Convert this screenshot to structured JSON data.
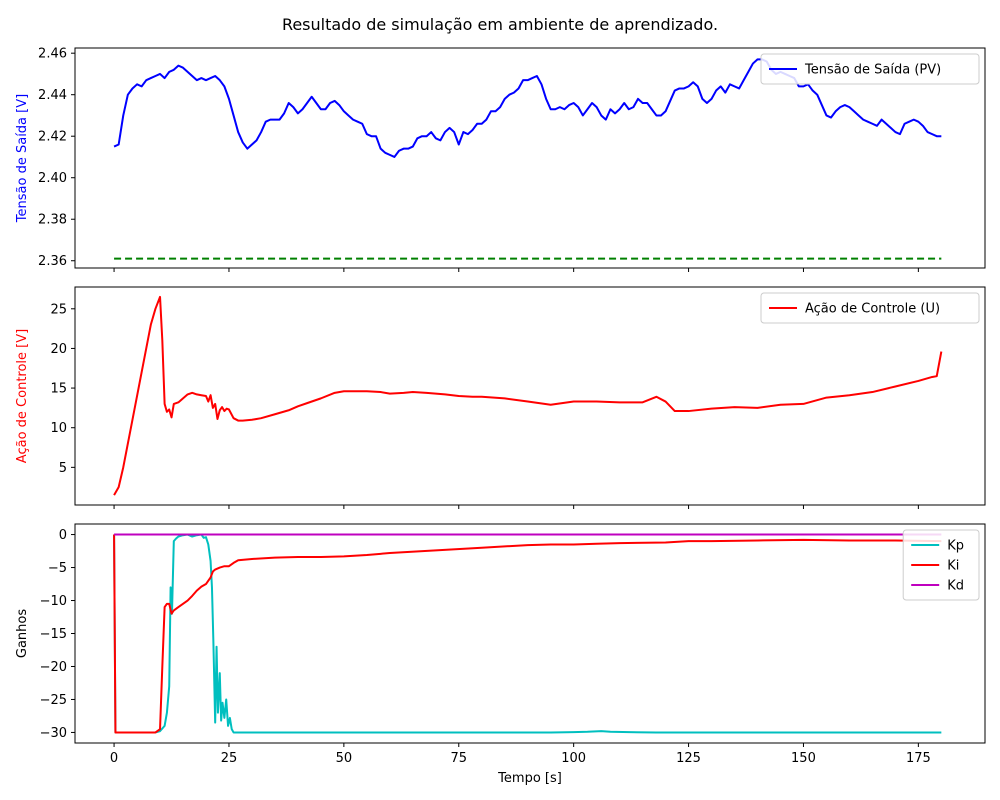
{
  "figure_title": "Resultado de simulação em ambiente de aprendizado.",
  "x_axis": {
    "label": "Tempo [s]",
    "ticks": [
      0,
      25,
      50,
      75,
      100,
      125,
      150,
      175
    ],
    "range": [
      -8.5,
      189.5
    ]
  },
  "chart_data": [
    {
      "type": "line",
      "ylabel": "Tensão de Saída [V]",
      "ylabel_color": "#0000ff",
      "xlim": [
        -8.5,
        189.5
      ],
      "ylim": [
        2.3565,
        2.4625
      ],
      "yticks": [
        2.36,
        2.38,
        2.4,
        2.42,
        2.44,
        2.46
      ],
      "yticks_labels": [
        "2.36",
        "2.38",
        "2.40",
        "2.42",
        "2.44",
        "2.46"
      ],
      "grid": false,
      "legend": {
        "placement": "top-right",
        "entries": [
          "Tensão de Saída (PV)"
        ]
      },
      "series": [
        {
          "name": "Tensão de Saída (PV)",
          "color": "#0000ff",
          "style": "solid",
          "x": [
            0,
            1,
            2,
            3,
            4,
            5,
            6,
            7,
            8,
            9,
            10,
            11,
            12,
            13,
            14,
            15,
            16,
            17,
            18,
            19,
            20,
            21,
            22,
            23,
            24,
            25,
            26,
            27,
            28,
            29,
            30,
            31,
            32,
            33,
            34,
            35,
            36,
            37,
            38,
            39,
            40,
            41,
            42,
            43,
            44,
            45,
            46,
            47,
            48,
            49,
            50,
            51,
            52,
            53,
            54,
            55,
            56,
            57,
            58,
            59,
            60,
            61,
            62,
            63,
            64,
            65,
            66,
            67,
            68,
            69,
            70,
            71,
            72,
            73,
            74,
            75,
            76,
            77,
            78,
            79,
            80,
            81,
            82,
            83,
            84,
            85,
            86,
            87,
            88,
            89,
            90,
            91,
            92,
            93,
            94,
            95,
            96,
            97,
            98,
            99,
            100,
            101,
            102,
            103,
            104,
            105,
            106,
            107,
            108,
            109,
            110,
            111,
            112,
            113,
            114,
            115,
            116,
            117,
            118,
            119,
            120,
            121,
            122,
            123,
            124,
            125,
            126,
            127,
            128,
            129,
            130,
            131,
            132,
            133,
            134,
            135,
            136,
            137,
            138,
            139,
            140,
            141,
            142,
            143,
            144,
            145,
            146,
            147,
            148,
            149,
            150,
            151,
            152,
            153,
            154,
            155,
            156,
            157,
            158,
            159,
            160,
            161,
            162,
            163,
            164,
            165,
            166,
            167,
            168,
            169,
            170,
            171,
            172,
            173,
            174,
            175,
            176,
            177,
            178,
            179,
            180
          ],
          "y": [
            2.415,
            2.416,
            2.43,
            2.44,
            2.443,
            2.445,
            2.444,
            2.447,
            2.448,
            2.449,
            2.45,
            2.448,
            2.451,
            2.452,
            2.454,
            2.453,
            2.451,
            2.449,
            2.447,
            2.448,
            2.447,
            2.448,
            2.449,
            2.447,
            2.444,
            2.438,
            2.43,
            2.422,
            2.417,
            2.414,
            2.416,
            2.418,
            2.422,
            2.427,
            2.428,
            2.428,
            2.428,
            2.431,
            2.436,
            2.434,
            2.431,
            2.433,
            2.436,
            2.439,
            2.436,
            2.433,
            2.433,
            2.436,
            2.437,
            2.435,
            2.432,
            2.43,
            2.428,
            2.427,
            2.426,
            2.421,
            2.42,
            2.42,
            2.414,
            2.412,
            2.411,
            2.41,
            2.413,
            2.414,
            2.414,
            2.415,
            2.419,
            2.42,
            2.42,
            2.422,
            2.419,
            2.418,
            2.422,
            2.424,
            2.422,
            2.416,
            2.422,
            2.421,
            2.423,
            2.426,
            2.426,
            2.428,
            2.432,
            2.432,
            2.434,
            2.438,
            2.44,
            2.441,
            2.443,
            2.447,
            2.447,
            2.448,
            2.449,
            2.445,
            2.438,
            2.433,
            2.433,
            2.434,
            2.433,
            2.435,
            2.436,
            2.434,
            2.43,
            2.433,
            2.436,
            2.434,
            2.43,
            2.428,
            2.433,
            2.431,
            2.433,
            2.436,
            2.433,
            2.434,
            2.438,
            2.436,
            2.436,
            2.433,
            2.43,
            2.43,
            2.432,
            2.437,
            2.442,
            2.443,
            2.443,
            2.444,
            2.446,
            2.444,
            2.438,
            2.436,
            2.438,
            2.442,
            2.444,
            2.441,
            2.445,
            2.444,
            2.443,
            2.447,
            2.451,
            2.455,
            2.457,
            2.457,
            2.456,
            2.452,
            2.45,
            2.451,
            2.45,
            2.449,
            2.448,
            2.444,
            2.444,
            2.445,
            2.442,
            2.44,
            2.435,
            2.43,
            2.429,
            2.432,
            2.434,
            2.435,
            2.434,
            2.432,
            2.43,
            2.428,
            2.427,
            2.426,
            2.425,
            2.428,
            2.426,
            2.424,
            2.422,
            2.421,
            2.426,
            2.427,
            2.428,
            2.427,
            2.425,
            2.422,
            2.421,
            2.42,
            2.42
          ]
        },
        {
          "name": "",
          "color": "#008000",
          "style": "dashed",
          "x": [
            0,
            180
          ],
          "y": [
            2.361,
            2.361
          ]
        }
      ]
    },
    {
      "type": "line",
      "ylabel": "Ação de Controle [V]",
      "ylabel_color": "#ff0000",
      "xlim": [
        -8.5,
        189.5
      ],
      "ylim": [
        0.25,
        27.75
      ],
      "yticks": [
        5,
        10,
        15,
        20,
        25
      ],
      "yticks_labels": [
        "5",
        "10",
        "15",
        "20",
        "25"
      ],
      "grid": false,
      "legend": {
        "placement": "top-right",
        "entries": [
          "Ação de Controle (U)"
        ]
      },
      "series": [
        {
          "name": "Ação de Controle (U)",
          "color": "#ff0000",
          "style": "solid",
          "x": [
            0,
            1,
            2,
            4,
            6,
            8,
            9,
            10,
            10.5,
            11,
            11.5,
            12,
            12.5,
            13,
            14,
            15,
            16,
            17,
            18,
            19,
            20,
            20.5,
            21,
            21.5,
            22,
            22.5,
            23,
            23.5,
            24,
            24.5,
            25,
            26,
            27,
            28,
            30,
            32,
            35,
            38,
            40,
            42,
            45,
            48,
            50,
            52,
            55,
            58,
            60,
            63,
            65,
            68,
            70,
            72,
            75,
            78,
            80,
            85,
            90,
            95,
            100,
            105,
            110,
            115,
            118,
            120,
            122,
            125,
            130,
            135,
            140,
            145,
            150,
            155,
            160,
            165,
            170,
            175,
            178,
            179,
            180
          ],
          "y": [
            1.5,
            2.5,
            5,
            11,
            17,
            23,
            25,
            26.5,
            21,
            13,
            12,
            12.3,
            11.3,
            13,
            13.2,
            13.7,
            14.2,
            14.4,
            14.2,
            14.1,
            14,
            13.3,
            14.1,
            12.5,
            13,
            11.1,
            12.2,
            12.6,
            12.1,
            12.4,
            12.3,
            11.2,
            10.9,
            10.9,
            11,
            11.2,
            11.7,
            12.2,
            12.7,
            13.1,
            13.7,
            14.4,
            14.6,
            14.6,
            14.6,
            14.5,
            14.3,
            14.4,
            14.5,
            14.4,
            14.3,
            14.2,
            14,
            13.9,
            13.9,
            13.7,
            13.3,
            12.9,
            13.3,
            13.3,
            13.2,
            13.2,
            13.9,
            13.3,
            12.1,
            12.1,
            12.4,
            12.6,
            12.5,
            12.9,
            13,
            13.8,
            14.1,
            14.5,
            15.2,
            15.9,
            16.4,
            16.5,
            19.6
          ]
        }
      ]
    },
    {
      "type": "line",
      "ylabel": "Ganhos",
      "ylabel_color": "#000000",
      "xlim": [
        -8.5,
        189.5
      ],
      "ylim": [
        -31.6,
        1.6
      ],
      "yticks": [
        0,
        -5,
        -10,
        -15,
        -20,
        -25,
        -30
      ],
      "yticks_labels": [
        "0",
        "−5",
        "−10",
        "−15",
        "−20",
        "−25",
        "−30"
      ],
      "grid": false,
      "legend": {
        "placement": "top-right",
        "entries": [
          "Kp",
          "Ki",
          "Kd"
        ]
      },
      "series": [
        {
          "name": "Kp",
          "color": "#00bfbf",
          "style": "solid",
          "x": [
            0,
            0.3,
            1,
            5,
            9,
            10,
            11,
            11.5,
            12,
            12.3,
            12.6,
            13,
            13.5,
            14,
            15,
            16,
            17,
            18,
            19,
            19.5,
            20,
            20.5,
            21,
            21.3,
            21.6,
            22,
            22.3,
            22.6,
            23,
            23.3,
            23.6,
            24,
            24.4,
            24.8,
            25.2,
            25.6,
            26,
            27,
            30,
            40,
            60,
            80,
            90,
            95,
            100,
            103,
            106,
            108,
            112,
            118,
            125,
            140,
            160,
            180
          ],
          "y": [
            0,
            -30,
            -30,
            -30,
            -30,
            -29.8,
            -29,
            -27,
            -23,
            -8,
            -12,
            -1,
            -0.6,
            -0.3,
            -0.1,
            0,
            -0.3,
            -0.1,
            0,
            -0.5,
            -0.4,
            -1.5,
            -4,
            -8,
            -16,
            -28.5,
            -17,
            -27,
            -21,
            -28.2,
            -25.5,
            -27.8,
            -25,
            -29,
            -27.8,
            -29.5,
            -30,
            -30,
            -30,
            -30,
            -30,
            -30,
            -30,
            -30,
            -29.95,
            -29.9,
            -29.8,
            -29.9,
            -29.95,
            -30,
            -30,
            -30,
            -30,
            -30
          ]
        },
        {
          "name": "Ki",
          "color": "#ff0000",
          "style": "solid",
          "x": [
            0,
            0.3,
            1,
            5,
            9,
            10,
            10.5,
            11,
            11.5,
            12,
            12.5,
            13,
            14,
            15,
            16,
            17,
            18,
            19,
            20,
            21,
            21.5,
            22,
            23,
            24,
            25,
            26,
            27,
            30,
            35,
            40,
            45,
            50,
            55,
            60,
            70,
            80,
            90,
            95,
            100,
            105,
            110,
            120,
            125,
            130,
            140,
            150,
            160,
            170,
            180
          ],
          "y": [
            0,
            -30,
            -30,
            -30,
            -30,
            -29.5,
            -20,
            -11,
            -10.5,
            -10.5,
            -12,
            -11.5,
            -11,
            -10.5,
            -10,
            -9.3,
            -8.5,
            -7.9,
            -7.5,
            -6.5,
            -5.6,
            -5.3,
            -5,
            -4.8,
            -4.8,
            -4.3,
            -3.9,
            -3.7,
            -3.5,
            -3.4,
            -3.4,
            -3.3,
            -3.1,
            -2.8,
            -2.4,
            -2,
            -1.6,
            -1.5,
            -1.5,
            -1.4,
            -1.3,
            -1.2,
            -1,
            -1,
            -0.9,
            -0.8,
            -0.9,
            -0.9,
            -1
          ]
        },
        {
          "name": "Kd",
          "color": "#bf00bf",
          "style": "solid",
          "x": [
            0,
            180
          ],
          "y": [
            0,
            0
          ]
        }
      ]
    }
  ]
}
